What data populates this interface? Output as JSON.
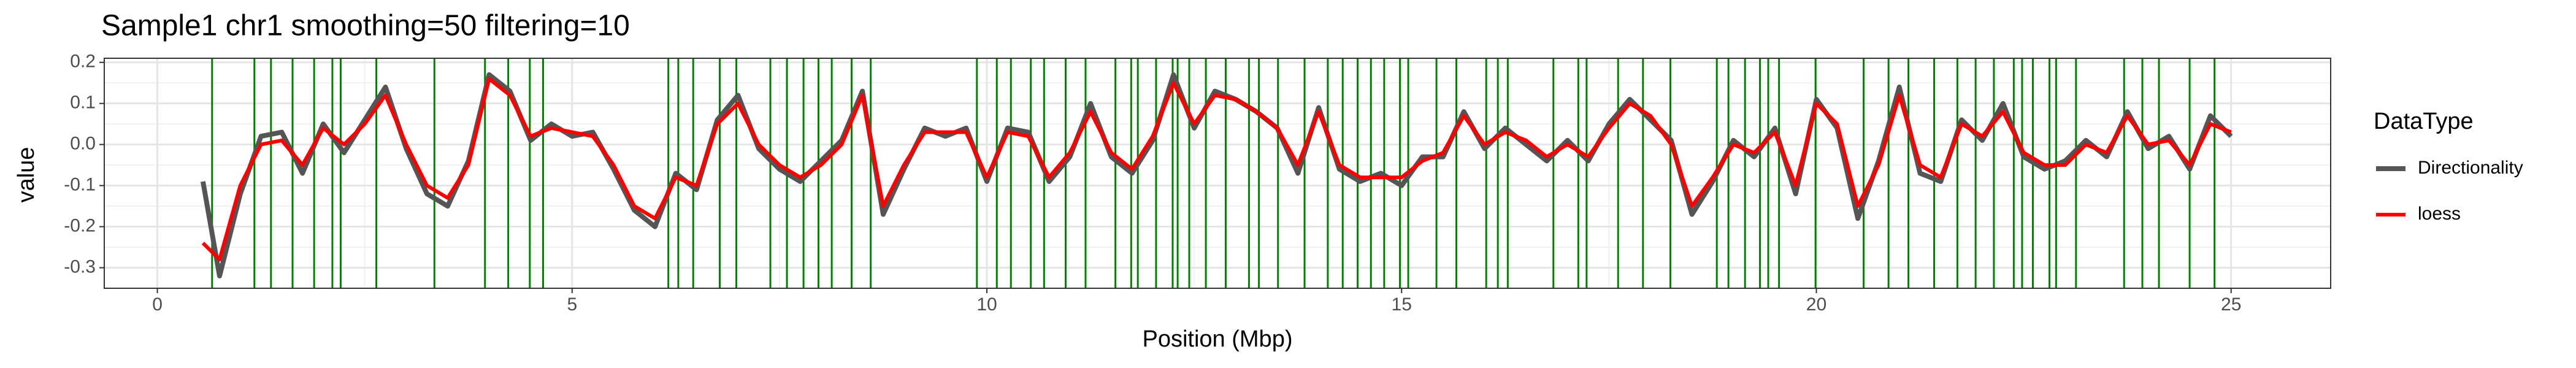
{
  "chart_data": {
    "type": "line",
    "title": "Sample1 chr1 smoothing=50 filtering=10",
    "x_label": "Position (Mbp)",
    "y_label": "value",
    "legend_title": "DataType",
    "legend": "right",
    "x": [
      0.55,
      0.75,
      1.0,
      1.25,
      1.5,
      1.75,
      2.0,
      2.25,
      2.5,
      2.75,
      3.0,
      3.25,
      3.5,
      3.75,
      4.0,
      4.25,
      4.5,
      4.75,
      5.0,
      5.25,
      5.5,
      5.75,
      6.0,
      6.25,
      6.5,
      6.75,
      7.0,
      7.25,
      7.5,
      7.75,
      8.0,
      8.25,
      8.5,
      8.75,
      9.0,
      9.25,
      9.5,
      9.75,
      10.0,
      10.25,
      10.5,
      10.75,
      11.0,
      11.25,
      11.5,
      11.75,
      12.0,
      12.25,
      12.5,
      12.75,
      13.0,
      13.25,
      13.5,
      13.75,
      14.0,
      14.25,
      14.5,
      14.75,
      15.0,
      15.25,
      15.5,
      15.75,
      16.0,
      16.25,
      16.5,
      16.75,
      17.0,
      17.25,
      17.5,
      17.75,
      18.0,
      18.25,
      18.5,
      18.75,
      19.0,
      19.25,
      19.5,
      19.75,
      20.0,
      20.25,
      20.5,
      20.75,
      21.0,
      21.25,
      21.5,
      21.75,
      22.0,
      22.25,
      22.5,
      22.75,
      23.0,
      23.25,
      23.5,
      23.75,
      24.0,
      24.25,
      24.5,
      24.75,
      25.0
    ],
    "series": [
      {
        "name": "Directionality",
        "color": "#555555",
        "values": [
          -0.09,
          -0.32,
          -0.12,
          0.02,
          0.03,
          -0.07,
          0.05,
          -0.02,
          0.06,
          0.14,
          -0.01,
          -0.12,
          -0.15,
          -0.04,
          0.17,
          0.13,
          0.01,
          0.05,
          0.02,
          0.03,
          -0.06,
          -0.16,
          -0.2,
          -0.07,
          -0.11,
          0.06,
          0.12,
          -0.01,
          -0.06,
          -0.09,
          -0.04,
          0.01,
          0.13,
          -0.17,
          -0.06,
          0.04,
          0.02,
          0.04,
          -0.09,
          0.04,
          0.03,
          -0.09,
          -0.03,
          0.1,
          -0.03,
          -0.07,
          0.01,
          0.17,
          0.04,
          0.13,
          0.11,
          0.08,
          0.04,
          -0.07,
          0.09,
          -0.06,
          -0.09,
          -0.07,
          -0.1,
          -0.03,
          -0.03,
          0.08,
          -0.01,
          0.04,
          0.0,
          -0.04,
          0.01,
          -0.04,
          0.05,
          0.11,
          0.06,
          0.01,
          -0.17,
          -0.09,
          0.01,
          -0.03,
          0.04,
          -0.12,
          0.11,
          0.04,
          -0.18,
          -0.04,
          0.14,
          -0.07,
          -0.09,
          0.06,
          0.01,
          0.1,
          -0.03,
          -0.06,
          -0.04,
          0.01,
          -0.03,
          0.08,
          -0.01,
          0.02,
          -0.06,
          0.07,
          0.02
        ]
      },
      {
        "name": "loess",
        "color": "#ff0000",
        "values": [
          -0.24,
          -0.28,
          -0.1,
          0.0,
          0.01,
          -0.05,
          0.04,
          0.0,
          0.05,
          0.12,
          0.0,
          -0.1,
          -0.13,
          -0.05,
          0.16,
          0.12,
          0.02,
          0.04,
          0.03,
          0.02,
          -0.05,
          -0.15,
          -0.18,
          -0.08,
          -0.1,
          0.05,
          0.1,
          0.0,
          -0.05,
          -0.08,
          -0.05,
          0.0,
          0.12,
          -0.15,
          -0.05,
          0.03,
          0.03,
          0.03,
          -0.08,
          0.03,
          0.02,
          -0.08,
          -0.02,
          0.08,
          -0.02,
          -0.06,
          0.02,
          0.15,
          0.05,
          0.12,
          0.11,
          0.08,
          0.04,
          -0.05,
          0.08,
          -0.05,
          -0.08,
          -0.08,
          -0.08,
          -0.04,
          -0.02,
          0.07,
          0.0,
          0.03,
          0.01,
          -0.03,
          0.0,
          -0.03,
          0.04,
          0.1,
          0.07,
          0.0,
          -0.15,
          -0.08,
          0.0,
          -0.02,
          0.03,
          -0.1,
          0.1,
          0.05,
          -0.15,
          -0.05,
          0.12,
          -0.05,
          -0.08,
          0.05,
          0.02,
          0.08,
          -0.02,
          -0.05,
          -0.05,
          0.0,
          -0.02,
          0.07,
          0.0,
          0.01,
          -0.05,
          0.05,
          0.03
        ]
      }
    ],
    "vlines": [
      0.66,
      1.17,
      1.37,
      1.63,
      1.89,
      2.11,
      2.21,
      2.64,
      3.34,
      3.95,
      4.23,
      4.49,
      4.65,
      6.16,
      6.28,
      6.46,
      6.78,
      6.98,
      7.39,
      7.59,
      7.79,
      7.97,
      8.13,
      8.37,
      8.6,
      9.88,
      10.12,
      10.29,
      10.53,
      10.69,
      10.95,
      11.19,
      11.55,
      11.74,
      11.82,
      12.04,
      12.24,
      12.3,
      12.44,
      12.64,
      12.88,
      13.16,
      13.28,
      13.51,
      13.83,
      14.11,
      14.29,
      14.47,
      14.63,
      14.79,
      14.98,
      15.08,
      15.42,
      15.66,
      16.02,
      16.16,
      16.28,
      16.83,
      17.13,
      17.23,
      17.61,
      17.91,
      18.24,
      18.8,
      18.94,
      19.14,
      19.32,
      19.42,
      19.55,
      19.99,
      20.57,
      20.87,
      21.11,
      21.42,
      21.7,
      21.92,
      22.14,
      22.38,
      22.48,
      22.61,
      22.81,
      22.89,
      23.13,
      23.71,
      23.93,
      24.13,
      24.5,
      24.8
    ],
    "vline_color": "#008000",
    "xlim": [
      -0.64,
      26.2
    ],
    "xticks": [
      0,
      5,
      10,
      15,
      20,
      25
    ],
    "ylim": [
      -0.35,
      0.21
    ],
    "yticks": [
      -0.3,
      -0.2,
      -0.1,
      {
        "value": 0,
        "label": "0.0"
      },
      0.1,
      0.2
    ],
    "grid": true
  }
}
